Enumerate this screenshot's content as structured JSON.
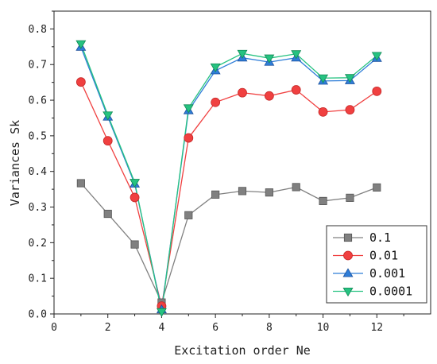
{
  "chart_data": {
    "type": "line",
    "title": "",
    "xlabel": "Excitation order Ne",
    "ylabel": "Variances Sk",
    "xlim": [
      0,
      14
    ],
    "ylim": [
      0,
      0.85
    ],
    "xticks": [
      0,
      2,
      4,
      6,
      8,
      10,
      12
    ],
    "yticks": [
      0.0,
      0.1,
      0.2,
      0.3,
      0.4,
      0.5,
      0.6,
      0.7,
      0.8
    ],
    "ytick_labels": [
      "0.0",
      "0.1",
      "0.2",
      "0.3",
      "0.4",
      "0.5",
      "0.6",
      "0.7",
      "0.8"
    ],
    "legend_position": "bottom-right",
    "x": [
      1,
      2,
      3,
      4,
      5,
      6,
      7,
      8,
      9,
      10,
      11,
      12
    ],
    "series": [
      {
        "name": "0.1",
        "marker": "square",
        "color": "#808080",
        "edge": "#555555",
        "line": "#808080",
        "values": [
          0.367,
          0.281,
          0.195,
          0.032,
          0.277,
          0.335,
          0.345,
          0.341,
          0.356,
          0.317,
          0.326,
          0.355
        ]
      },
      {
        "name": "0.01",
        "marker": "circle",
        "color": "#f04040",
        "edge": "#c62828",
        "line": "#f04040",
        "values": [
          0.651,
          0.486,
          0.327,
          0.022,
          0.494,
          0.594,
          0.621,
          0.612,
          0.629,
          0.567,
          0.573,
          0.625
        ]
      },
      {
        "name": "0.001",
        "marker": "triangle-up",
        "color": "#2f7ed8",
        "edge": "#1a4f9c",
        "line": "#2f7ed8",
        "values": [
          0.749,
          0.553,
          0.365,
          0.012,
          0.571,
          0.683,
          0.719,
          0.707,
          0.719,
          0.654,
          0.655,
          0.718
        ]
      },
      {
        "name": "0.0001",
        "marker": "triangle-down",
        "color": "#26c281",
        "edge": "#118a55",
        "line": "#26c281",
        "values": [
          0.758,
          0.558,
          0.369,
          0.006,
          0.578,
          0.693,
          0.731,
          0.718,
          0.73,
          0.662,
          0.663,
          0.725
        ]
      }
    ]
  }
}
